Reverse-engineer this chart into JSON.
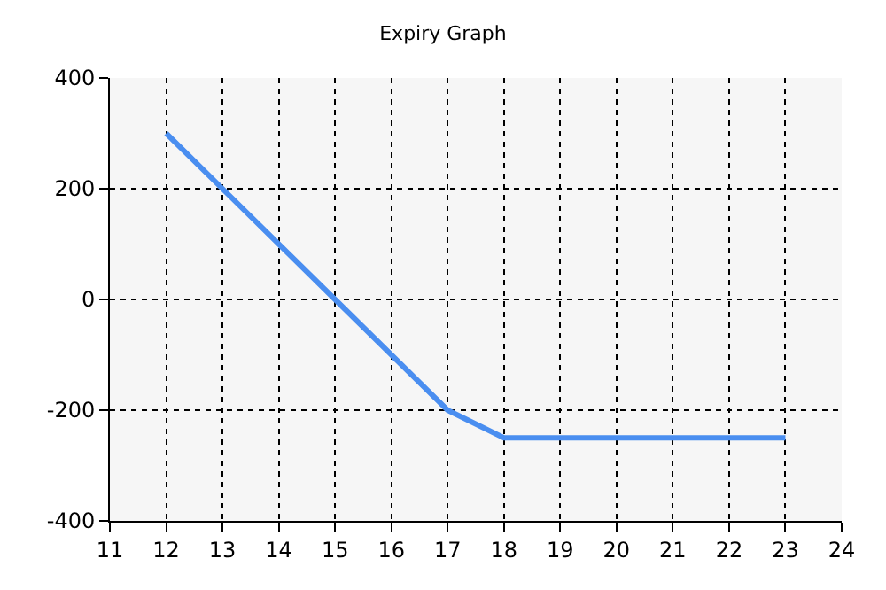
{
  "chart_data": {
    "type": "line",
    "title": "Expiry Graph",
    "x": [
      12,
      15,
      17,
      18,
      23
    ],
    "series": [
      {
        "color": "#4a8ef0",
        "values": [
          300,
          0,
          -200,
          -250,
          -250
        ]
      }
    ],
    "xlim": [
      11,
      24
    ],
    "xticks": [
      11,
      12,
      13,
      14,
      15,
      16,
      17,
      18,
      19,
      20,
      21,
      22,
      23,
      24
    ],
    "ylim": [
      -400,
      400
    ],
    "yticks": [
      -400,
      -200,
      0,
      200,
      400
    ],
    "grid": true,
    "line_style": "solid",
    "marker": "none"
  }
}
